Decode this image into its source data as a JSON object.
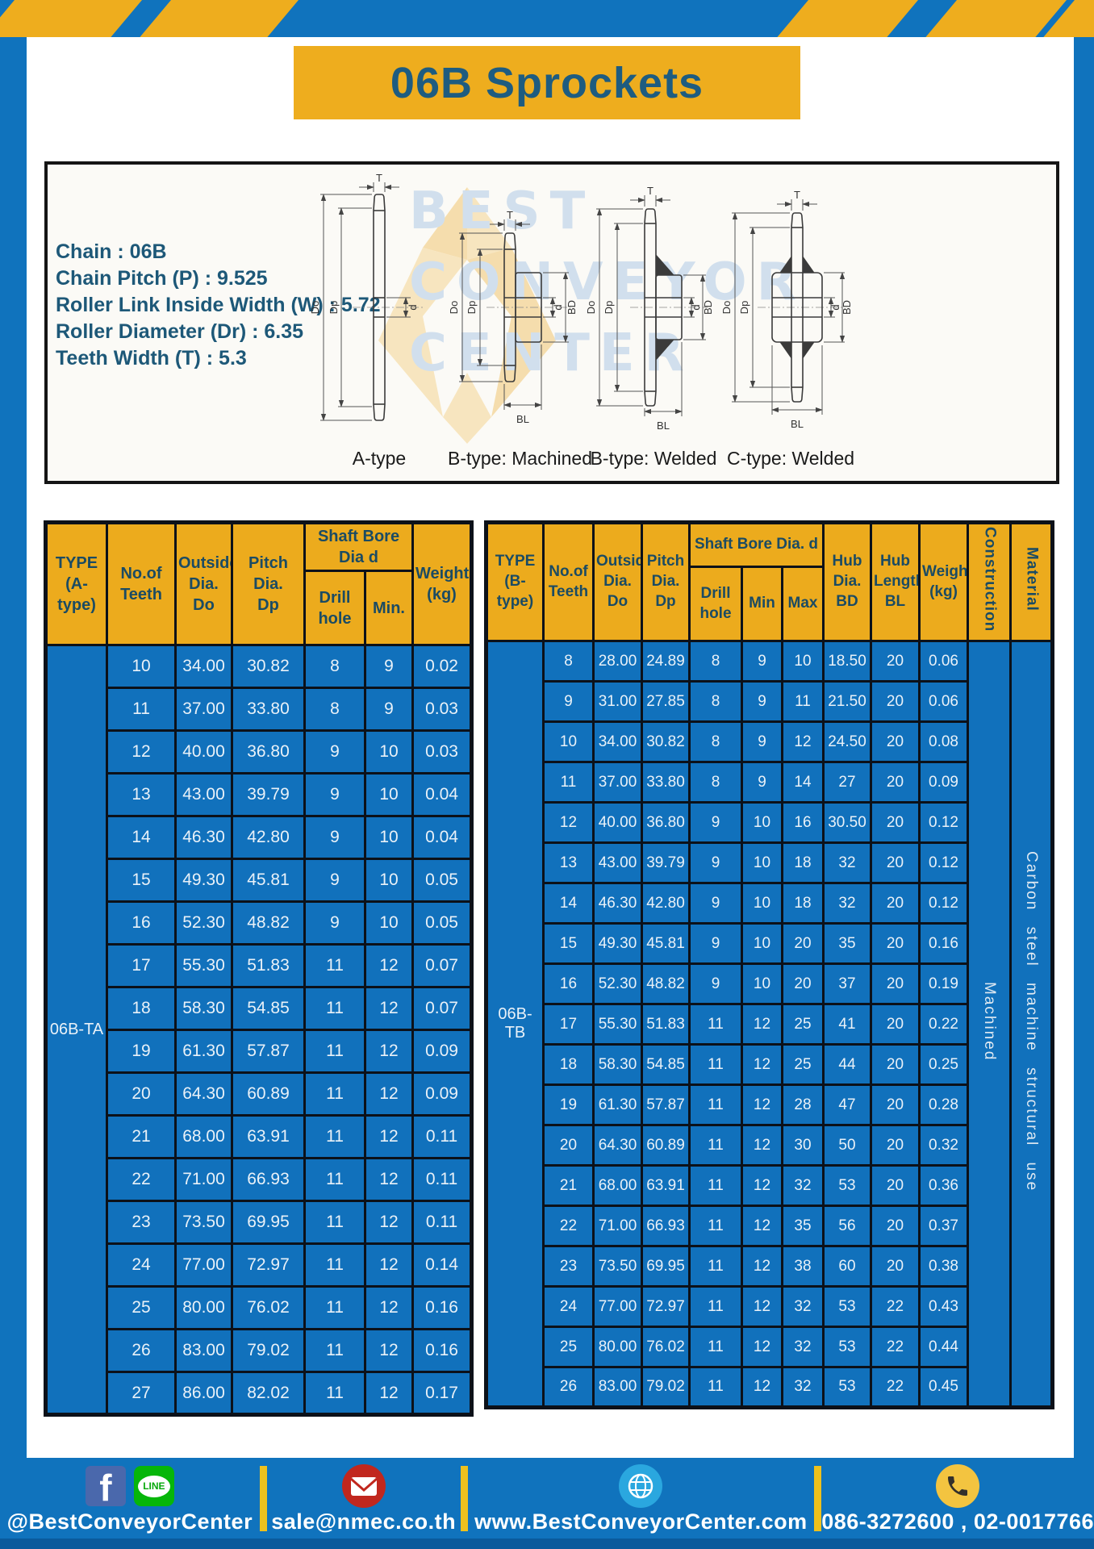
{
  "page": {
    "title": "06B Sprockets"
  },
  "watermark": {
    "lines": [
      "BEST",
      "CONVEYOR",
      "CENTER"
    ]
  },
  "specs": [
    "Chain : 06B",
    "Chain Pitch (P) : 9.525",
    "Roller Link Inside Width (W) : 5.72",
    "Roller Diameter (Dr) : 6.35",
    "Teeth Width (T) : 5.3"
  ],
  "diagrams": {
    "dims": {
      "t": "T",
      "outside": "Do",
      "pitch": "Dp",
      "bore": "d",
      "hub_dia": "BD",
      "hub_len": "BL"
    },
    "captions": [
      "A-type",
      "B-type: Machined",
      "B-type: Welded",
      "C-type: Welded"
    ]
  },
  "table_a": {
    "headers": {
      "type": "TYPE\n(A-type)",
      "teeth": "No.of\nTeeth",
      "outside": "Outside\nDia.\nDo",
      "pitch": "Pitch Dia.\nDp",
      "shaft_bore": "Shaft Bore Dia d",
      "drill": "Drill hole",
      "min": "Min.",
      "weight": "Weight\n(kg)"
    },
    "type_label": "06B-TA",
    "rows": [
      [
        "10",
        "34.00",
        "30.82",
        "8",
        "9",
        "0.02"
      ],
      [
        "11",
        "37.00",
        "33.80",
        "8",
        "9",
        "0.03"
      ],
      [
        "12",
        "40.00",
        "36.80",
        "9",
        "10",
        "0.03"
      ],
      [
        "13",
        "43.00",
        "39.79",
        "9",
        "10",
        "0.04"
      ],
      [
        "14",
        "46.30",
        "42.80",
        "9",
        "10",
        "0.04"
      ],
      [
        "15",
        "49.30",
        "45.81",
        "9",
        "10",
        "0.05"
      ],
      [
        "16",
        "52.30",
        "48.82",
        "9",
        "10",
        "0.05"
      ],
      [
        "17",
        "55.30",
        "51.83",
        "11",
        "12",
        "0.07"
      ],
      [
        "18",
        "58.30",
        "54.85",
        "11",
        "12",
        "0.07"
      ],
      [
        "19",
        "61.30",
        "57.87",
        "11",
        "12",
        "0.09"
      ],
      [
        "20",
        "64.30",
        "60.89",
        "11",
        "12",
        "0.09"
      ],
      [
        "21",
        "68.00",
        "63.91",
        "11",
        "12",
        "0.11"
      ],
      [
        "22",
        "71.00",
        "66.93",
        "11",
        "12",
        "0.11"
      ],
      [
        "23",
        "73.50",
        "69.95",
        "11",
        "12",
        "0.11"
      ],
      [
        "24",
        "77.00",
        "72.97",
        "11",
        "12",
        "0.14"
      ],
      [
        "25",
        "80.00",
        "76.02",
        "11",
        "12",
        "0.16"
      ],
      [
        "26",
        "83.00",
        "79.02",
        "11",
        "12",
        "0.16"
      ],
      [
        "27",
        "86.00",
        "82.02",
        "11",
        "12",
        "0.17"
      ]
    ]
  },
  "table_b": {
    "headers": {
      "type": "TYPE\n(B-type)",
      "teeth": "No.of\nTeeth",
      "outside": "Outside\nDia.\nDo",
      "pitch": "Pitch\nDia.\nDp",
      "shaft_bore": "Shaft Bore Dia. d",
      "drill": "Drill hole",
      "min": "Min",
      "max": "Max",
      "hub_dia": "Hub\nDia.\nBD",
      "hub_len": "Hub\nLength\nBL",
      "weight": "Weight\n(kg)",
      "construction": "Construction",
      "material": "Material"
    },
    "type_label": "06B-TB",
    "construction_value": "Machined",
    "material_value": "Carbon steel machine structural use",
    "rows": [
      [
        "8",
        "28.00",
        "24.89",
        "8",
        "9",
        "10",
        "18.50",
        "20",
        "0.06"
      ],
      [
        "9",
        "31.00",
        "27.85",
        "8",
        "9",
        "11",
        "21.50",
        "20",
        "0.06"
      ],
      [
        "10",
        "34.00",
        "30.82",
        "8",
        "9",
        "12",
        "24.50",
        "20",
        "0.08"
      ],
      [
        "11",
        "37.00",
        "33.80",
        "8",
        "9",
        "14",
        "27",
        "20",
        "0.09"
      ],
      [
        "12",
        "40.00",
        "36.80",
        "9",
        "10",
        "16",
        "30.50",
        "20",
        "0.12"
      ],
      [
        "13",
        "43.00",
        "39.79",
        "9",
        "10",
        "18",
        "32",
        "20",
        "0.12"
      ],
      [
        "14",
        "46.30",
        "42.80",
        "9",
        "10",
        "18",
        "32",
        "20",
        "0.12"
      ],
      [
        "15",
        "49.30",
        "45.81",
        "9",
        "10",
        "20",
        "35",
        "20",
        "0.16"
      ],
      [
        "16",
        "52.30",
        "48.82",
        "9",
        "10",
        "20",
        "37",
        "20",
        "0.19"
      ],
      [
        "17",
        "55.30",
        "51.83",
        "11",
        "12",
        "25",
        "41",
        "20",
        "0.22"
      ],
      [
        "18",
        "58.30",
        "54.85",
        "11",
        "12",
        "25",
        "44",
        "20",
        "0.25"
      ],
      [
        "19",
        "61.30",
        "57.87",
        "11",
        "12",
        "28",
        "47",
        "20",
        "0.28"
      ],
      [
        "20",
        "64.30",
        "60.89",
        "11",
        "12",
        "30",
        "50",
        "20",
        "0.32"
      ],
      [
        "21",
        "68.00",
        "63.91",
        "11",
        "12",
        "32",
        "53",
        "20",
        "0.36"
      ],
      [
        "22",
        "71.00",
        "66.93",
        "11",
        "12",
        "35",
        "56",
        "20",
        "0.37"
      ],
      [
        "23",
        "73.50",
        "69.95",
        "11",
        "12",
        "38",
        "60",
        "20",
        "0.38"
      ],
      [
        "24",
        "77.00",
        "72.97",
        "11",
        "12",
        "32",
        "53",
        "22",
        "0.43"
      ],
      [
        "25",
        "80.00",
        "76.02",
        "11",
        "12",
        "32",
        "53",
        "22",
        "0.44"
      ],
      [
        "26",
        "83.00",
        "79.02",
        "11",
        "12",
        "32",
        "53",
        "22",
        "0.45"
      ]
    ]
  },
  "footer": {
    "facebook_glyph": "f",
    "line_badge": "LINE",
    "items": [
      {
        "label": "@BestConveyorCenter"
      },
      {
        "label": "sale@nmec.co.th"
      },
      {
        "label": "www.BestConveyorCenter.com"
      },
      {
        "label": "086-3272600 , 02-0017766"
      }
    ]
  },
  "colors": {
    "brand_blue": "#1073bd",
    "brand_yellow": "#eead1e",
    "table_cell_blue": "#1171bc",
    "table_border": "#0c1119",
    "title_text": "#1e5c80",
    "footer_dark_strip": "#0a5a9c"
  }
}
